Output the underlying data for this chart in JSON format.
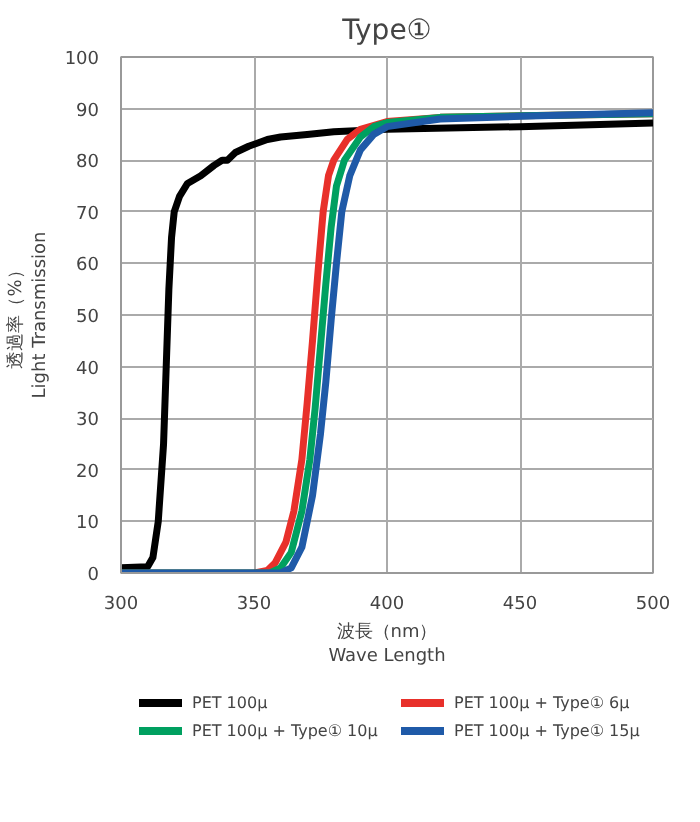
{
  "chart_data": {
    "type": "line",
    "title": "Type①",
    "xlabel": "波長（nm）\nWave Length",
    "ylabel": "透過率（%）\nLight Transmission",
    "xlim": [
      300,
      500
    ],
    "xticks": [
      300,
      350,
      400,
      450,
      500
    ],
    "ylim": [
      0,
      100
    ],
    "yticks": [
      0,
      10,
      20,
      30,
      40,
      50,
      60,
      70,
      80,
      90,
      100
    ],
    "grid": true,
    "legend": "bottom",
    "marker": "none",
    "line_style": "solid",
    "series": [
      {
        "name": "PET 100μ",
        "color": "#000000",
        "x": [
          300,
          310,
          312,
          314,
          316,
          317,
          318,
          319,
          320,
          322,
          325,
          330,
          335,
          338,
          340,
          343,
          348,
          355,
          360,
          370,
          380,
          400,
          450,
          500
        ],
        "values": [
          1,
          1.2,
          3,
          10,
          25,
          40,
          55,
          65,
          70,
          73,
          75.5,
          77,
          79,
          80,
          80,
          81.5,
          82.7,
          84,
          84.5,
          85,
          85.5,
          86,
          86.5,
          87.2
        ]
      },
      {
        "name": "PET 100μ + Type① 6μ",
        "color": "#e8302a",
        "x": [
          300,
          350,
          355,
          358,
          362,
          365,
          368,
          370,
          372,
          374,
          376,
          378,
          380,
          385,
          390,
          400,
          420,
          450,
          500
        ],
        "values": [
          0,
          0,
          0.5,
          2,
          6,
          12,
          22,
          33,
          45,
          58,
          70,
          77,
          80,
          84,
          86,
          87.5,
          88.3,
          88.6,
          89
        ]
      },
      {
        "name": "PET 100μ + Type① 10μ",
        "color": "#00a060",
        "x": [
          300,
          356,
          360,
          364,
          368,
          371,
          373,
          375,
          377,
          379,
          381,
          384,
          390,
          395,
          400,
          420,
          450,
          500
        ],
        "values": [
          0,
          0,
          1,
          4,
          12,
          22,
          32,
          44,
          56,
          67,
          75,
          80,
          84.5,
          86.5,
          87.3,
          88.3,
          88.6,
          89
        ]
      },
      {
        "name": "PET 100μ + Type① 15μ",
        "color": "#1f5aa8",
        "x": [
          300,
          360,
          364,
          368,
          372,
          375,
          377,
          379,
          381,
          383,
          386,
          390,
          395,
          400,
          420,
          450,
          500
        ],
        "values": [
          0,
          0,
          1,
          5,
          15,
          27,
          37,
          49,
          60,
          70,
          77,
          82,
          85,
          86.5,
          88,
          88.5,
          89.2
        ]
      }
    ]
  }
}
